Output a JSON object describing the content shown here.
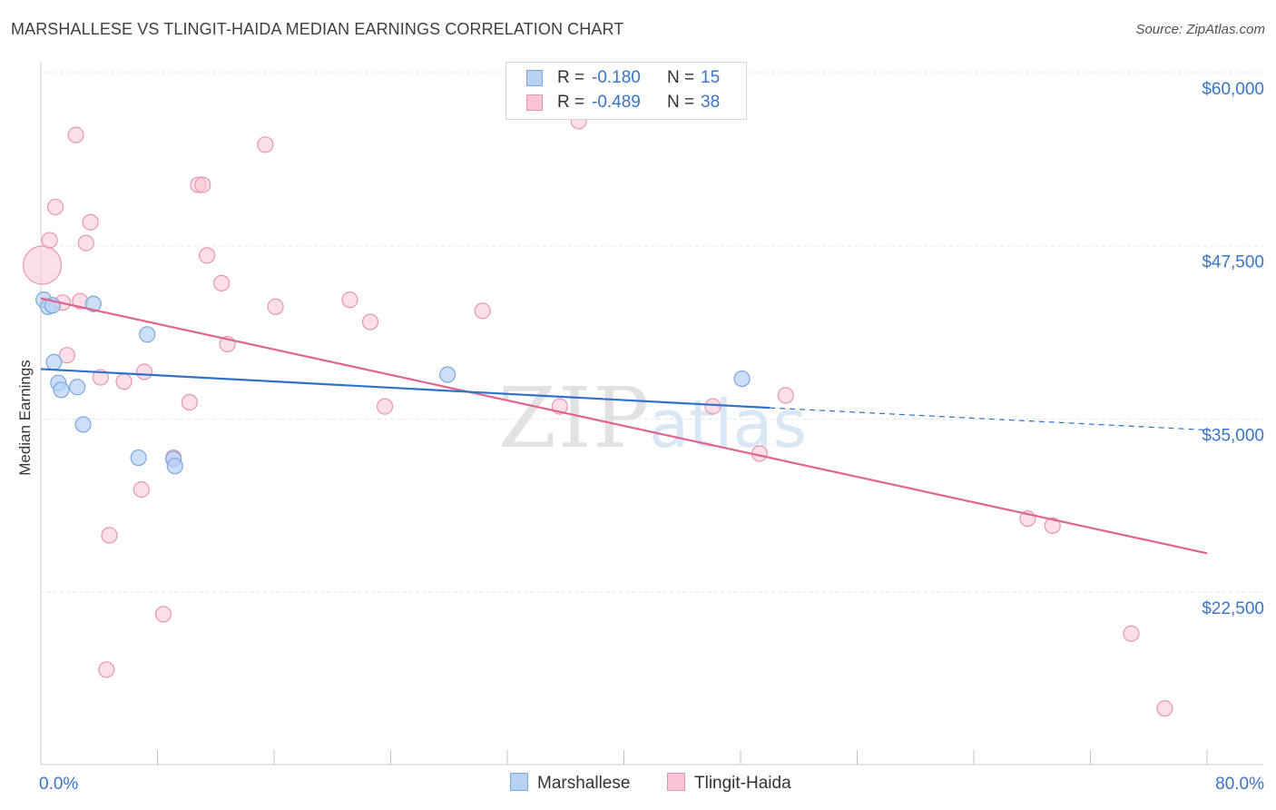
{
  "title": "MARSHALLESE VS TLINGIT-HAIDA MEDIAN EARNINGS CORRELATION CHART",
  "source": "Source: ZipAtlas.com",
  "watermark": {
    "zip": "ZIP",
    "atlas": "atlas"
  },
  "colors": {
    "blue_fill": "#b8d2f4",
    "blue_stroke": "#7aa6dd",
    "blue_line": "#2f72c9",
    "pink_fill": "#f9c4d3",
    "pink_stroke": "#e896b0",
    "pink_line": "#e0648e",
    "axis_label": "#3a74c8",
    "grid": "#e4e4e4"
  },
  "legend": {
    "rows": [
      {
        "r_label": "R =",
        "r_value": "-0.180",
        "n_label": "N =",
        "n_value": "15"
      },
      {
        "r_label": "R =",
        "r_value": "-0.489",
        "n_label": "N =",
        "n_value": "38"
      }
    ]
  },
  "bottom_legend": {
    "marshallese": "Marshallese",
    "tlingit": "Tlingit-Haida"
  },
  "chart_data": {
    "type": "scatter",
    "title": "MARSHALLESE VS TLINGIT-HAIDA MEDIAN EARNINGS CORRELATION CHART",
    "xlabel": "",
    "ylabel": "Median Earnings",
    "xlim": [
      0,
      80
    ],
    "ylim": [
      11000,
      61500
    ],
    "x_tick_labels": [
      "0.0%",
      "80.0%"
    ],
    "y_ticks": [
      {
        "value": 60000,
        "label": "$60,000"
      },
      {
        "value": 47500,
        "label": "$47,500"
      },
      {
        "value": 35000,
        "label": "$35,000"
      },
      {
        "value": 22500,
        "label": "$22,500"
      }
    ],
    "series": [
      {
        "name": "Marshallese",
        "points": [
          {
            "x": 0.2,
            "y": 43600
          },
          {
            "x": 0.5,
            "y": 43100
          },
          {
            "x": 0.8,
            "y": 43200
          },
          {
            "x": 3.6,
            "y": 43300
          },
          {
            "x": 0.9,
            "y": 39100
          },
          {
            "x": 1.2,
            "y": 37600
          },
          {
            "x": 1.4,
            "y": 37100
          },
          {
            "x": 2.5,
            "y": 37300
          },
          {
            "x": 2.9,
            "y": 34600
          },
          {
            "x": 7.3,
            "y": 41100
          },
          {
            "x": 6.7,
            "y": 32200
          },
          {
            "x": 9.1,
            "y": 32100
          },
          {
            "x": 9.2,
            "y": 31600
          },
          {
            "x": 27.9,
            "y": 38200
          },
          {
            "x": 48.1,
            "y": 37900
          }
        ],
        "trend": {
          "x0": 0,
          "y0": 38600,
          "x1": 50,
          "y1": 35800,
          "dash_to_x": 80,
          "dash_to_y": 34200
        }
      },
      {
        "name": "Tlingit-Haida",
        "points": [
          {
            "x": 0.1,
            "y": 46100
          },
          {
            "x": 0.6,
            "y": 47900
          },
          {
            "x": 1.0,
            "y": 50300
          },
          {
            "x": 2.4,
            "y": 55500
          },
          {
            "x": 3.1,
            "y": 47700
          },
          {
            "x": 3.4,
            "y": 49200
          },
          {
            "x": 1.5,
            "y": 43400
          },
          {
            "x": 2.7,
            "y": 43500
          },
          {
            "x": 1.8,
            "y": 39600
          },
          {
            "x": 4.1,
            "y": 38000
          },
          {
            "x": 5.7,
            "y": 37700
          },
          {
            "x": 7.1,
            "y": 38400
          },
          {
            "x": 6.9,
            "y": 29900
          },
          {
            "x": 4.7,
            "y": 26600
          },
          {
            "x": 4.5,
            "y": 16900
          },
          {
            "x": 8.4,
            "y": 20900
          },
          {
            "x": 9.1,
            "y": 32200
          },
          {
            "x": 10.2,
            "y": 36200
          },
          {
            "x": 10.8,
            "y": 51900
          },
          {
            "x": 11.1,
            "y": 51900
          },
          {
            "x": 11.4,
            "y": 46800
          },
          {
            "x": 12.4,
            "y": 44800
          },
          {
            "x": 12.8,
            "y": 40400
          },
          {
            "x": 15.4,
            "y": 54800
          },
          {
            "x": 16.1,
            "y": 43100
          },
          {
            "x": 21.2,
            "y": 43600
          },
          {
            "x": 22.6,
            "y": 42000
          },
          {
            "x": 23.6,
            "y": 35900
          },
          {
            "x": 30.3,
            "y": 42800
          },
          {
            "x": 35.6,
            "y": 35900
          },
          {
            "x": 36.9,
            "y": 56500
          },
          {
            "x": 46.1,
            "y": 35900
          },
          {
            "x": 49.3,
            "y": 32500
          },
          {
            "x": 51.1,
            "y": 36700
          },
          {
            "x": 67.7,
            "y": 27800
          },
          {
            "x": 69.4,
            "y": 27300
          },
          {
            "x": 74.8,
            "y": 19500
          },
          {
            "x": 77.1,
            "y": 14100
          }
        ],
        "trend": {
          "x0": 0,
          "y0": 43700,
          "x1": 80,
          "y1": 25300
        }
      }
    ]
  }
}
